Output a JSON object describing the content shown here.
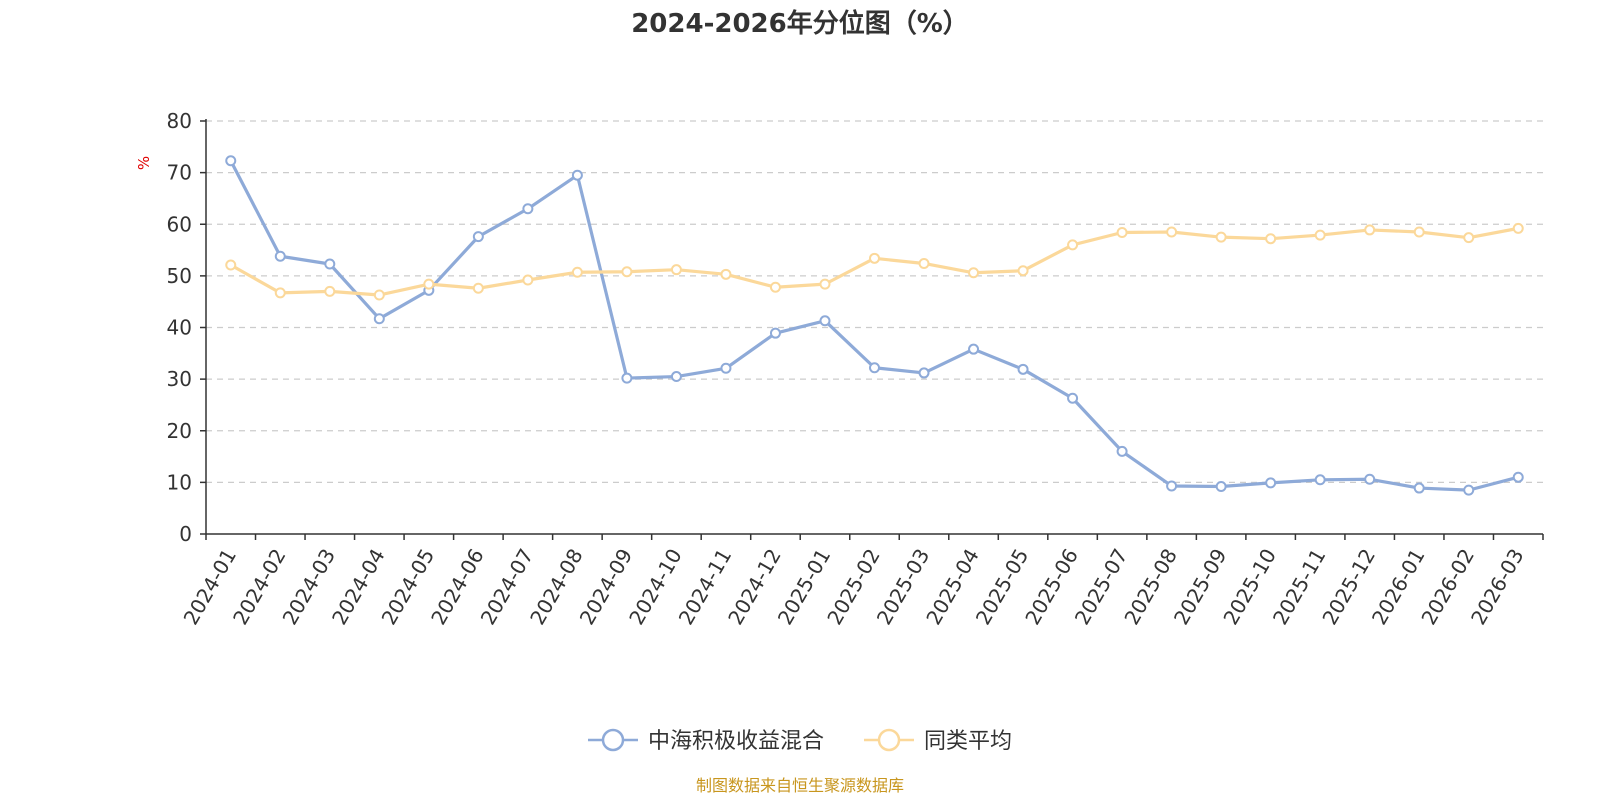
{
  "source": "制图数据来自恒生聚源数据库",
  "colors": {
    "series_a": "#8eaad8",
    "series_b": "#fbd89a",
    "grid": "#cccccc",
    "axis": "#333333",
    "unit": "#e00000",
    "source": "#c8961e"
  },
  "chart_data": {
    "type": "line",
    "title": "2024-2026年分位图（%）",
    "ylabel": "%",
    "xlabel": "",
    "ylim": [
      0,
      80
    ],
    "yticks": [
      0,
      10,
      20,
      30,
      40,
      50,
      60,
      70,
      80
    ],
    "grid": true,
    "legend_position": "bottom",
    "categories": [
      "2024-01",
      "2024-02",
      "2024-03",
      "2024-04",
      "2024-05",
      "2024-06",
      "2024-07",
      "2024-08",
      "2024-09",
      "2024-10",
      "2024-11",
      "2024-12",
      "2025-01",
      "2025-02",
      "2025-03",
      "2025-04",
      "2025-05",
      "2025-06",
      "2025-07",
      "2025-08",
      "2025-09",
      "2025-10",
      "2025-11",
      "2025-12",
      "2026-01",
      "2026-02",
      "2026-03"
    ],
    "series": [
      {
        "name": "中海积极收益混合",
        "color": "#8eaad8",
        "values": [
          72.3,
          53.8,
          52.3,
          41.7,
          47.2,
          57.6,
          63.0,
          69.5,
          30.2,
          30.5,
          32.1,
          38.9,
          41.3,
          32.2,
          31.2,
          35.8,
          31.9,
          26.3,
          16.0,
          9.3,
          9.2,
          9.9,
          10.5,
          10.6,
          8.9,
          8.5,
          11.0
        ]
      },
      {
        "name": "同类平均",
        "color": "#fbd89a",
        "values": [
          52.1,
          46.7,
          47.0,
          46.3,
          48.4,
          47.6,
          49.2,
          50.7,
          50.8,
          51.2,
          50.3,
          47.8,
          48.4,
          53.4,
          52.4,
          50.6,
          51.0,
          56.0,
          58.4,
          58.5,
          57.5,
          57.2,
          57.9,
          58.9,
          58.5,
          57.4,
          59.2
        ]
      }
    ]
  }
}
